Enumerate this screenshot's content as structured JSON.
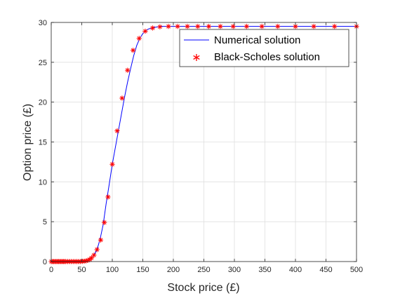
{
  "chart_data": {
    "type": "line",
    "title": "",
    "xlabel": "Stock price (£)",
    "ylabel": "Option price (£)",
    "xlim": [
      0,
      500
    ],
    "ylim": [
      0,
      30
    ],
    "xticks": [
      "0",
      "50",
      "100",
      "150",
      "200",
      "250",
      "300",
      "350",
      "400",
      "450",
      "500"
    ],
    "yticks": [
      "0",
      "5",
      "10",
      "15",
      "20",
      "25",
      "30"
    ],
    "grid": true,
    "legend_position": "top-right",
    "series": [
      {
        "name": "Numerical solution",
        "style": "line",
        "color": "#0000ff",
        "x": [
          0,
          50,
          60,
          65,
          70,
          75,
          80,
          85,
          90,
          95,
          100,
          105,
          110,
          115,
          120,
          125,
          130,
          135,
          140,
          145,
          150,
          155,
          160,
          170,
          180,
          190,
          200,
          250,
          300,
          350,
          400,
          450,
          500
        ],
        "y": [
          0,
          0.05,
          0.2,
          0.4,
          0.8,
          1.5,
          2.8,
          4.6,
          7.3,
          9.7,
          12.2,
          14.3,
          16.4,
          18.5,
          20.6,
          22.5,
          24.2,
          25.8,
          27.1,
          28.0,
          28.6,
          29.0,
          29.2,
          29.4,
          29.5,
          29.5,
          29.5,
          29.5,
          29.5,
          29.5,
          29.5,
          29.5,
          29.5
        ]
      },
      {
        "name": "Black-Scholes solution",
        "style": "markers",
        "marker": "*",
        "color": "#ff0000",
        "x": [
          0,
          2,
          4,
          6,
          8,
          10,
          12,
          14,
          16,
          18,
          20,
          22,
          24,
          27,
          30,
          33,
          36,
          39,
          42,
          45,
          48,
          51,
          54,
          57,
          60,
          63,
          66,
          70,
          75,
          81,
          87,
          93,
          100,
          108,
          116,
          125,
          134,
          144,
          154,
          166,
          178,
          192,
          207,
          223,
          240,
          258,
          277,
          298,
          320,
          345,
          371,
          400,
          430,
          464,
          500
        ],
        "y": [
          0,
          0,
          0,
          0,
          0,
          0,
          0,
          0,
          0,
          0,
          0,
          0,
          0,
          0,
          0,
          0,
          0,
          0,
          0,
          0,
          0,
          0.02,
          0.05,
          0.08,
          0.15,
          0.25,
          0.45,
          0.8,
          1.5,
          2.7,
          4.9,
          8.1,
          12.2,
          16.4,
          20.5,
          24.0,
          26.5,
          28.0,
          28.9,
          29.3,
          29.45,
          29.5,
          29.5,
          29.5,
          29.5,
          29.5,
          29.5,
          29.5,
          29.5,
          29.5,
          29.5,
          29.5,
          29.5,
          29.5,
          29.5
        ]
      }
    ]
  }
}
